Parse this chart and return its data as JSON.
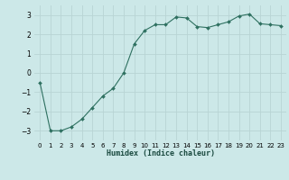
{
  "x": [
    0,
    1,
    2,
    3,
    4,
    5,
    6,
    7,
    8,
    9,
    10,
    11,
    12,
    13,
    14,
    15,
    16,
    17,
    18,
    19,
    20,
    21,
    22,
    23
  ],
  "y": [
    -0.5,
    -3.0,
    -3.0,
    -2.8,
    -2.4,
    -1.8,
    -1.2,
    -0.8,
    0.0,
    1.5,
    2.2,
    2.5,
    2.5,
    2.9,
    2.85,
    2.4,
    2.35,
    2.5,
    2.65,
    2.95,
    3.05,
    2.55,
    2.5,
    2.45
  ],
  "xlabel": "Humidex (Indice chaleur)",
  "bg_color": "#cce8e8",
  "grid_color": "#b8d4d4",
  "line_color": "#2e7060",
  "marker_color": "#2e7060",
  "ylim": [
    -3.5,
    3.5
  ],
  "xlim": [
    -0.5,
    23.5
  ],
  "yticks": [
    -3,
    -2,
    -1,
    0,
    1,
    2,
    3
  ],
  "xticks": [
    0,
    1,
    2,
    3,
    4,
    5,
    6,
    7,
    8,
    9,
    10,
    11,
    12,
    13,
    14,
    15,
    16,
    17,
    18,
    19,
    20,
    21,
    22,
    23
  ]
}
